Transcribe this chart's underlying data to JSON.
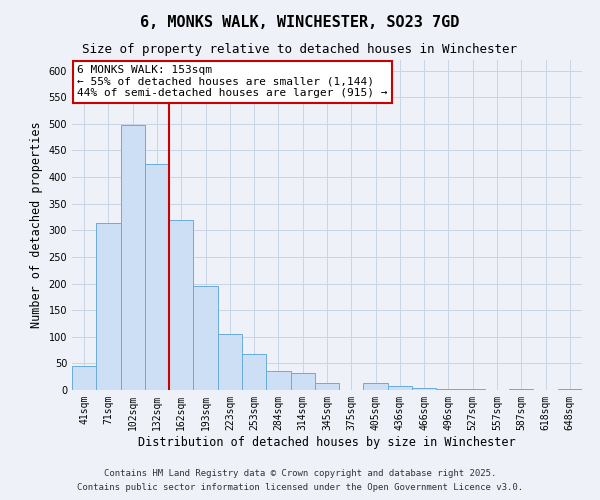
{
  "title": "6, MONKS WALK, WINCHESTER, SO23 7GD",
  "subtitle": "Size of property relative to detached houses in Winchester",
  "xlabel": "Distribution of detached houses by size in Winchester",
  "ylabel": "Number of detached properties",
  "bar_labels": [
    "41sqm",
    "71sqm",
    "102sqm",
    "132sqm",
    "162sqm",
    "193sqm",
    "223sqm",
    "253sqm",
    "284sqm",
    "314sqm",
    "345sqm",
    "375sqm",
    "405sqm",
    "436sqm",
    "466sqm",
    "496sqm",
    "527sqm",
    "557sqm",
    "587sqm",
    "618sqm",
    "648sqm"
  ],
  "bar_values": [
    46,
    313,
    498,
    424,
    320,
    195,
    105,
    68,
    35,
    32,
    13,
    0,
    13,
    8,
    4,
    2,
    1,
    0,
    1,
    0,
    1
  ],
  "bar_color": "#ccdff5",
  "bar_edge_color": "#6aabdd",
  "vline_x": 4,
  "vline_color": "#cc0000",
  "annotation_line1": "6 MONKS WALK: 153sqm",
  "annotation_line2": "← 55% of detached houses are smaller (1,144)",
  "annotation_line3": "44% of semi-detached houses are larger (915) →",
  "annotation_box_facecolor": "white",
  "annotation_box_edgecolor": "#cc0000",
  "ylim": [
    0,
    620
  ],
  "yticks": [
    0,
    50,
    100,
    150,
    200,
    250,
    300,
    350,
    400,
    450,
    500,
    550,
    600
  ],
  "footer_line1": "Contains HM Land Registry data © Crown copyright and database right 2025.",
  "footer_line2": "Contains public sector information licensed under the Open Government Licence v3.0.",
  "background_color": "#eef2f8",
  "grid_color": "#c8d4e4",
  "title_fontsize": 11,
  "subtitle_fontsize": 9,
  "axis_label_fontsize": 8.5,
  "tick_fontsize": 7,
  "footer_fontsize": 6.5,
  "annotation_fontsize": 8
}
